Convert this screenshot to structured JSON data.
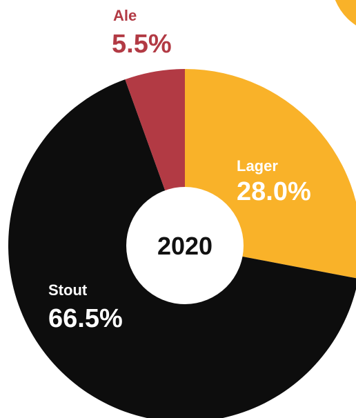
{
  "chart_data": {
    "type": "pie",
    "variant": "donut",
    "center_label": "2020",
    "slices": [
      {
        "label": "Lager",
        "value": 28.0,
        "display": "28.0%",
        "color": "#F9B229",
        "label_color": "#ffffff"
      },
      {
        "label": "Stout",
        "value": 66.5,
        "display": "66.5%",
        "color": "#0d0d0d",
        "label_color": "#ffffff"
      },
      {
        "label": "Ale",
        "value": 5.5,
        "display": "5.5%",
        "color": "#B23A44",
        "label_color": "#B23A44"
      }
    ],
    "start_angle_deg": 0,
    "direction": "clockwise"
  },
  "colors": {
    "background": "#ffffff",
    "center_hole": "#ffffff",
    "decor_circle": "#F9B229"
  }
}
